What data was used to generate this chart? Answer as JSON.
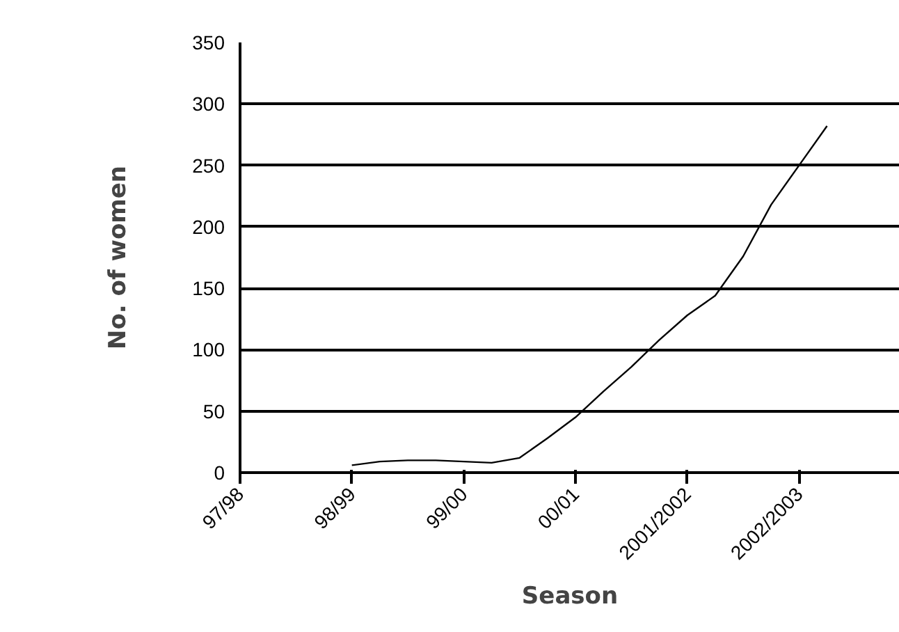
{
  "chart_data": {
    "type": "line",
    "xlabel": "Season",
    "ylabel": "No. of women",
    "categories": [
      "97/98",
      null,
      null,
      null,
      "98/99",
      null,
      null,
      null,
      "99/00",
      null,
      null,
      null,
      "00/01",
      null,
      null,
      null,
      "2001/2002",
      null,
      null,
      null,
      "2002/2003",
      null,
      null,
      null
    ],
    "series": [
      {
        "color": "#000000",
        "values": [
          null,
          null,
          null,
          null,
          6,
          9,
          10,
          10,
          9,
          8,
          12,
          28,
          45,
          66,
          86,
          108,
          128,
          144,
          176,
          218,
          250,
          282,
          null,
          null
        ]
      }
    ],
    "ylim": [
      0,
      350
    ],
    "yticks": [
      0,
      50,
      100,
      150,
      200,
      250,
      300,
      350
    ],
    "grid": "y",
    "marker": "none",
    "line_style": "solid"
  }
}
